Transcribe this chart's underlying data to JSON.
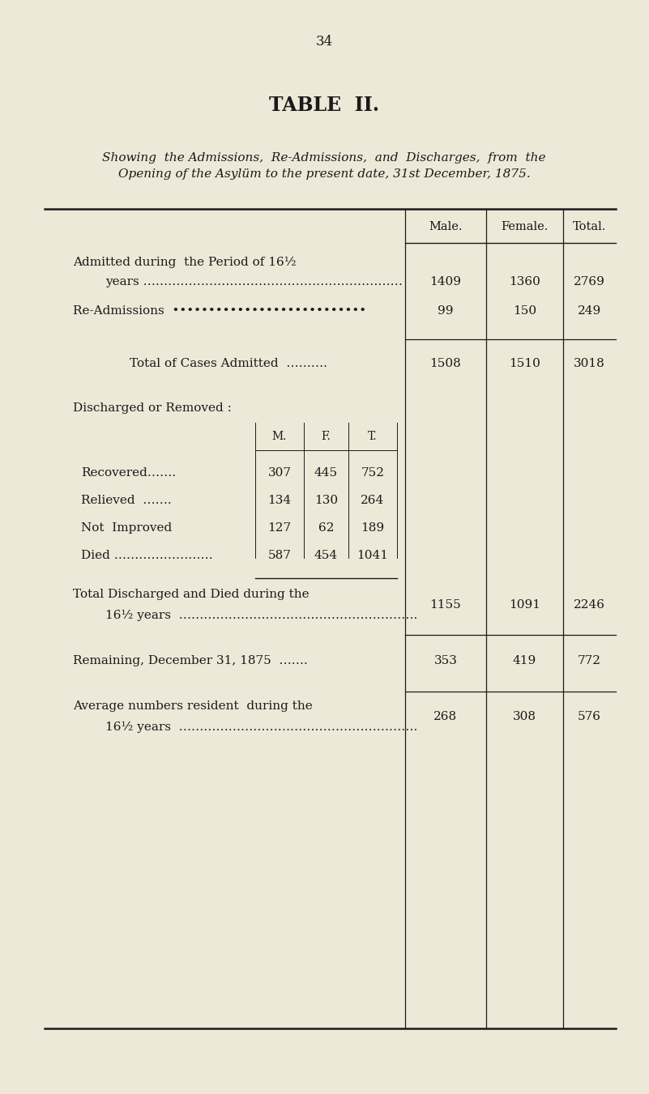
{
  "bg_color": "#ede8d8",
  "text_color": "#1a1a1a",
  "page_number": "34",
  "title": "TABLE  II.",
  "subtitle_line1": "Showing  the Admissions,  Re-Admissions,  and  Discharges,  from  the",
  "subtitle_line2": "Opening of the Asylüm to the present date, 31st December, 1875.",
  "col_headers": [
    "Male.",
    "Female.",
    "Total."
  ],
  "inner_col_headers": [
    "M.",
    "F.",
    "T."
  ],
  "admitted_line1": "Admitted during  the Period of 16½",
  "admitted_line2": "years ………………………………………………………",
  "readmissions_label": "Re-Admissions  •••••••••••••••••••••••••••",
  "total_cases_label": "Total of Cases Admitted  ……….",
  "discharged_label": "Discharged or Removed :",
  "inner_labels": [
    "Recovered…….",
    "Relieved  …….",
    "Not  Improved",
    "Died ……………………"
  ],
  "inner_m": [
    "307",
    "134",
    "127",
    "587"
  ],
  "inner_f": [
    "445",
    "130",
    "62",
    "454"
  ],
  "inner_t": [
    "752",
    "264",
    "189",
    "1041"
  ],
  "total_discharged_line1": "Total Discharged and Died during the",
  "total_discharged_line2": "16½ years  ………………………………………………….",
  "remaining_label": "Remaining, December 31, 1875  …….",
  "average_line1": "Average numbers resident  during the",
  "average_line2": "16½ years  ………………………………………………….",
  "row_male": [
    "1409",
    "99",
    "1508",
    "1155",
    "353",
    "268"
  ],
  "row_female": [
    "1360",
    "150",
    "1510",
    "1091",
    "419",
    "308"
  ],
  "row_total": [
    "2769",
    "249",
    "3018",
    "2246",
    "772",
    "576"
  ]
}
